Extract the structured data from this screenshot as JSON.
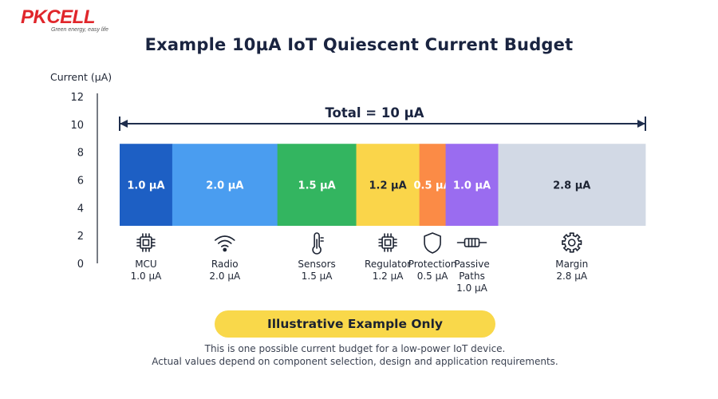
{
  "brand": {
    "name": "PKCELL",
    "tagline": "Green energy, easy life",
    "color": "#e0262b"
  },
  "chart_data": {
    "type": "bar",
    "orientation": "horizontal-stacked",
    "title": "Example 10µA IoT Quiescent Current Budget",
    "ylabel": "Current (µA)",
    "yticks": [
      0,
      2,
      4,
      6,
      8,
      10,
      12
    ],
    "ylim": [
      0,
      12
    ],
    "total_label": "Total = 10 µA",
    "total_value": 10,
    "grid": false,
    "segments": [
      {
        "name": "MCU",
        "value": 1.0,
        "value_label": "1.0 µA",
        "color": "#1d5fc4",
        "icon": "chip-icon"
      },
      {
        "name": "Radio",
        "value": 2.0,
        "value_label": "2.0 µA",
        "color": "#4a9df0",
        "icon": "wifi-icon"
      },
      {
        "name": "Sensors",
        "value": 1.5,
        "value_label": "1.5 µA",
        "color": "#33b560",
        "icon": "thermometer-icon"
      },
      {
        "name": "Regulator",
        "value": 1.2,
        "value_label": "1.2 µA",
        "color": "#fad54a",
        "icon": "regulator-chip-icon"
      },
      {
        "name": "Protection",
        "value": 0.5,
        "value_label": "0.5 µA",
        "color": "#fb8b46",
        "icon": "shield-icon"
      },
      {
        "name": "Passive\nPaths",
        "value": 1.0,
        "value_label": "1.0 µA",
        "color": "#9a6cf0",
        "icon": "resistor-icon"
      },
      {
        "name": "Margin",
        "value": 2.8,
        "value_label": "2.8 µA",
        "color": "#d2d9e5",
        "icon": "gear-icon"
      }
    ]
  },
  "footer": {
    "banner": "Illustrative Example Only",
    "note_line1": "This is one possible current budget for a low-power IoT device.",
    "note_line2": "Actual values depend on component selection, design and application requirements."
  }
}
